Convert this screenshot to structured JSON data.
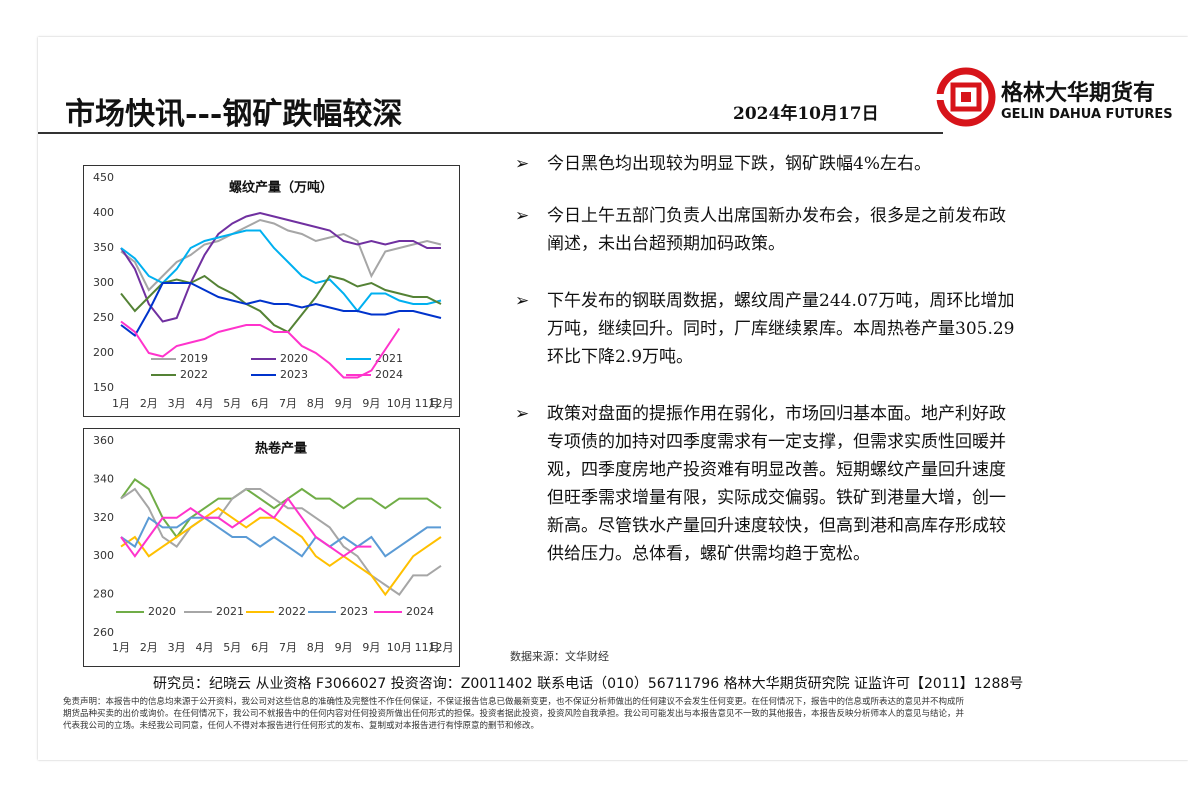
{
  "header": {
    "title": "市场快讯---钢矿跌幅较深",
    "date": "2024年10月17日",
    "logo_cn": "格林大华期货有",
    "logo_en": "GELIN DAHUA FUTURES"
  },
  "bullets": [
    [
      "今日黑色均出现较为明显下跌，钢矿跌幅4%左右。"
    ],
    [
      "今日上午五部门负责人出席国新办发布会，很多是之前发布政",
      "阐述，未出台超预期加码政策。"
    ],
    [
      "下午发布的钢联周数据，螺纹周产量244.07万吨，周环比增加",
      "万吨，继续回升。同时，厂库继续累库。本周热卷产量305.29",
      "环比下降2.9万吨。"
    ],
    [
      "政策对盘面的提振作用在弱化，市场回归基本面。地产利好政",
      "专项债的加持对四季度需求有一定支撑，但需求实质性回暖并",
      "观，四季度房地产投资难有明显改善。短期螺纹产量回升速度",
      "但旺季需求增量有限，实际成交偏弱。铁矿到港量大增，创一",
      "新高。尽管铁水产量回升速度较快，但高到港和高库存形成较",
      "供给压力。总体看，螺矿供需均趋于宽松。"
    ]
  ],
  "source": "数据来源：文华财经",
  "footer": {
    "contact": "研究员：纪晓云   从业资格 F3066027   投资咨询：Z0011402    联系电话（010）56711796         格林大华期货研究院  证监许可【2011】1288号",
    "disclaimer": [
      "免责声明：本报告中的信息均来源于公开资料，我公司对这些信息的准确性及完整性不作任何保证，不保证报告信息已做最新变更，也不保证分析师做出的任何建议不会发生任何变更。在任何情况下，报告中的信息或所表达的意见并不构成所",
      "期货品种买卖的出价或询价。在任何情况下，我公司不就报告中的任何内容对任何投资所做出任何形式的担保。投资者据此投资，投资风险自我承担。我公司可能发出与本报告意见不一致的其他报告，本报告反映分析师本人的意见与结论，并",
      "代表我公司的立场。未经我公司同意，任何人不得对本报告进行任何形式的发布、复制或对本报告进行有悖原意的删节和修改。"
    ]
  },
  "chart_data": [
    {
      "type": "line",
      "title": "螺纹产量（万吨）",
      "categories": [
        "1月",
        null,
        "2月",
        null,
        "3月",
        null,
        "4月",
        null,
        "5月",
        null,
        "6月",
        null,
        "7月",
        null,
        "8月",
        null,
        "9月",
        null,
        "9月",
        null,
        "10月",
        null,
        "11月",
        "12月"
      ],
      "ylim": [
        150,
        450
      ],
      "yticks": [
        150,
        200,
        250,
        300,
        350,
        400,
        450
      ],
      "series": [
        {
          "name": "2019",
          "color": "#a6a6a6",
          "values": [
            345,
            330,
            290,
            310,
            330,
            340,
            355,
            360,
            370,
            380,
            390,
            385,
            375,
            370,
            360,
            365,
            370,
            360,
            310,
            345,
            350,
            355,
            360,
            355
          ]
        },
        {
          "name": "2020",
          "color": "#7030a0",
          "values": [
            350,
            320,
            270,
            245,
            250,
            300,
            340,
            370,
            385,
            395,
            400,
            395,
            390,
            385,
            380,
            375,
            360,
            355,
            360,
            355,
            360,
            360,
            350,
            350
          ]
        },
        {
          "name": "2021",
          "color": "#00b0f0",
          "values": [
            350,
            335,
            310,
            300,
            320,
            350,
            360,
            365,
            370,
            375,
            375,
            350,
            330,
            310,
            300,
            305,
            285,
            260,
            285,
            285,
            275,
            270,
            270,
            275
          ]
        },
        {
          "name": "2022",
          "color": "#548235",
          "values": [
            285,
            260,
            280,
            300,
            305,
            300,
            310,
            295,
            285,
            270,
            260,
            240,
            230,
            255,
            280,
            310,
            305,
            295,
            300,
            290,
            285,
            280,
            280,
            270
          ]
        },
        {
          "name": "2023",
          "color": "#0033cc",
          "values": [
            240,
            225,
            260,
            300,
            300,
            300,
            290,
            280,
            275,
            270,
            275,
            270,
            270,
            265,
            270,
            265,
            260,
            260,
            255,
            255,
            260,
            260,
            255,
            250
          ]
        },
        {
          "name": "2024",
          "color": "#ff33cc",
          "values": [
            245,
            230,
            200,
            195,
            210,
            215,
            220,
            230,
            235,
            240,
            240,
            230,
            230,
            210,
            200,
            185,
            165,
            165,
            175,
            205,
            235,
            null,
            null,
            null
          ]
        }
      ]
    },
    {
      "type": "line",
      "title": "热卷产量",
      "categories": [
        "1月",
        null,
        "2月",
        null,
        "3月",
        null,
        "4月",
        null,
        "5月",
        null,
        "6月",
        null,
        "7月",
        null,
        "8月",
        null,
        "9月",
        null,
        "9月",
        null,
        "10月",
        null,
        "11月",
        "12月"
      ],
      "ylim": [
        260,
        360
      ],
      "yticks": [
        260,
        280,
        300,
        320,
        340,
        360
      ],
      "series": [
        {
          "name": "2020",
          "color": "#70ad47",
          "values": [
            330,
            340,
            335,
            320,
            310,
            320,
            325,
            330,
            330,
            335,
            330,
            325,
            330,
            335,
            330,
            330,
            325,
            330,
            330,
            325,
            330,
            330,
            330,
            325
          ]
        },
        {
          "name": "2021",
          "color": "#a6a6a6",
          "values": [
            330,
            335,
            325,
            310,
            305,
            315,
            320,
            320,
            330,
            335,
            335,
            330,
            325,
            325,
            320,
            315,
            305,
            300,
            290,
            285,
            280,
            290,
            290,
            295
          ]
        },
        {
          "name": "2022",
          "color": "#ffc000",
          "values": [
            305,
            310,
            300,
            305,
            310,
            315,
            320,
            325,
            320,
            315,
            320,
            320,
            315,
            310,
            300,
            295,
            300,
            295,
            290,
            280,
            290,
            300,
            305,
            310
          ]
        },
        {
          "name": "2023",
          "color": "#5b9bd5",
          "values": [
            310,
            305,
            320,
            315,
            315,
            320,
            320,
            315,
            310,
            310,
            305,
            310,
            305,
            300,
            310,
            305,
            310,
            305,
            310,
            300,
            305,
            310,
            315,
            315
          ]
        },
        {
          "name": "2024",
          "color": "#ff33cc",
          "values": [
            310,
            300,
            310,
            320,
            320,
            325,
            320,
            320,
            315,
            320,
            325,
            320,
            330,
            320,
            310,
            305,
            300,
            305,
            305,
            null,
            null,
            null,
            null,
            null
          ]
        }
      ]
    }
  ]
}
